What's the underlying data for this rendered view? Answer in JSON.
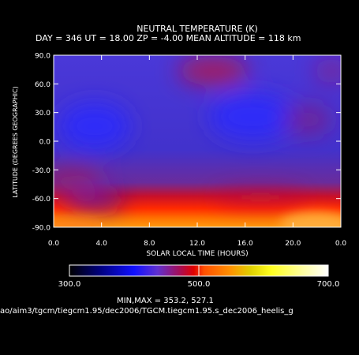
{
  "chart_data": {
    "type": "heatmap",
    "title": "NEUTRAL TEMPERATURE (K)",
    "subtitle": "DAY = 346   UT = 18.00   ZP =    -4.00   MEAN ALTITUDE = 118 km",
    "xlabel": "SOLAR LOCAL TIME (HOURS)",
    "ylabel": "LATITUDE (DEGREES GEOGRAPHIC)",
    "x_ticks": [
      "0.0",
      "4.0",
      "8.0",
      "12.0",
      "16.0",
      "20.0",
      "0.0"
    ],
    "y_ticks": [
      "90.0",
      "60.0",
      "30.0",
      "0.0",
      "-30.0",
      "-60.0",
      "-90.0"
    ],
    "xlim": [
      0,
      24
    ],
    "ylim": [
      -90,
      90
    ],
    "colorbar": {
      "min_label": "300.0",
      "mid_label": "500.0",
      "max_label": "700.0",
      "range": [
        300,
        700
      ]
    },
    "minmax_text": "MIN,MAX =        353.2,       527.1",
    "min": 353.2,
    "max": 527.1,
    "file_path": "ao/aim3/tgcm/tiegcm1.95/dec2006/TGCM.tiegcm1.95.s_dec2006_heelis_g"
  }
}
